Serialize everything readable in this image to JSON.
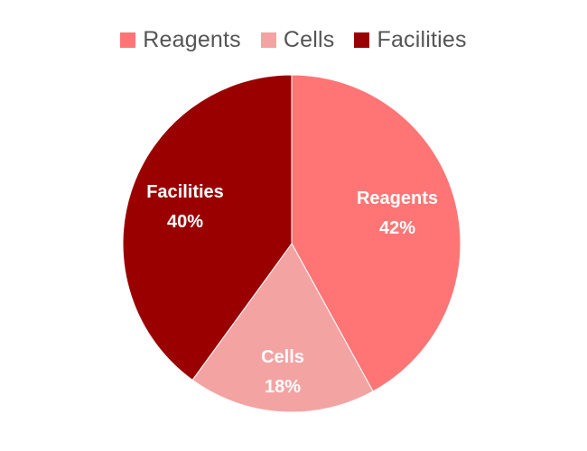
{
  "chart_data": {
    "type": "pie",
    "categories": [
      "Reagents",
      "Cells",
      "Facilities"
    ],
    "values": [
      42,
      18,
      40
    ],
    "value_labels": [
      "42%",
      "18%",
      "40%"
    ],
    "colors": [
      "#ff7575",
      "#f4a3a3",
      "#9b0000"
    ],
    "title": "",
    "legend_position": "top",
    "start_angle": "12 o'clock",
    "direction": "clockwise"
  }
}
